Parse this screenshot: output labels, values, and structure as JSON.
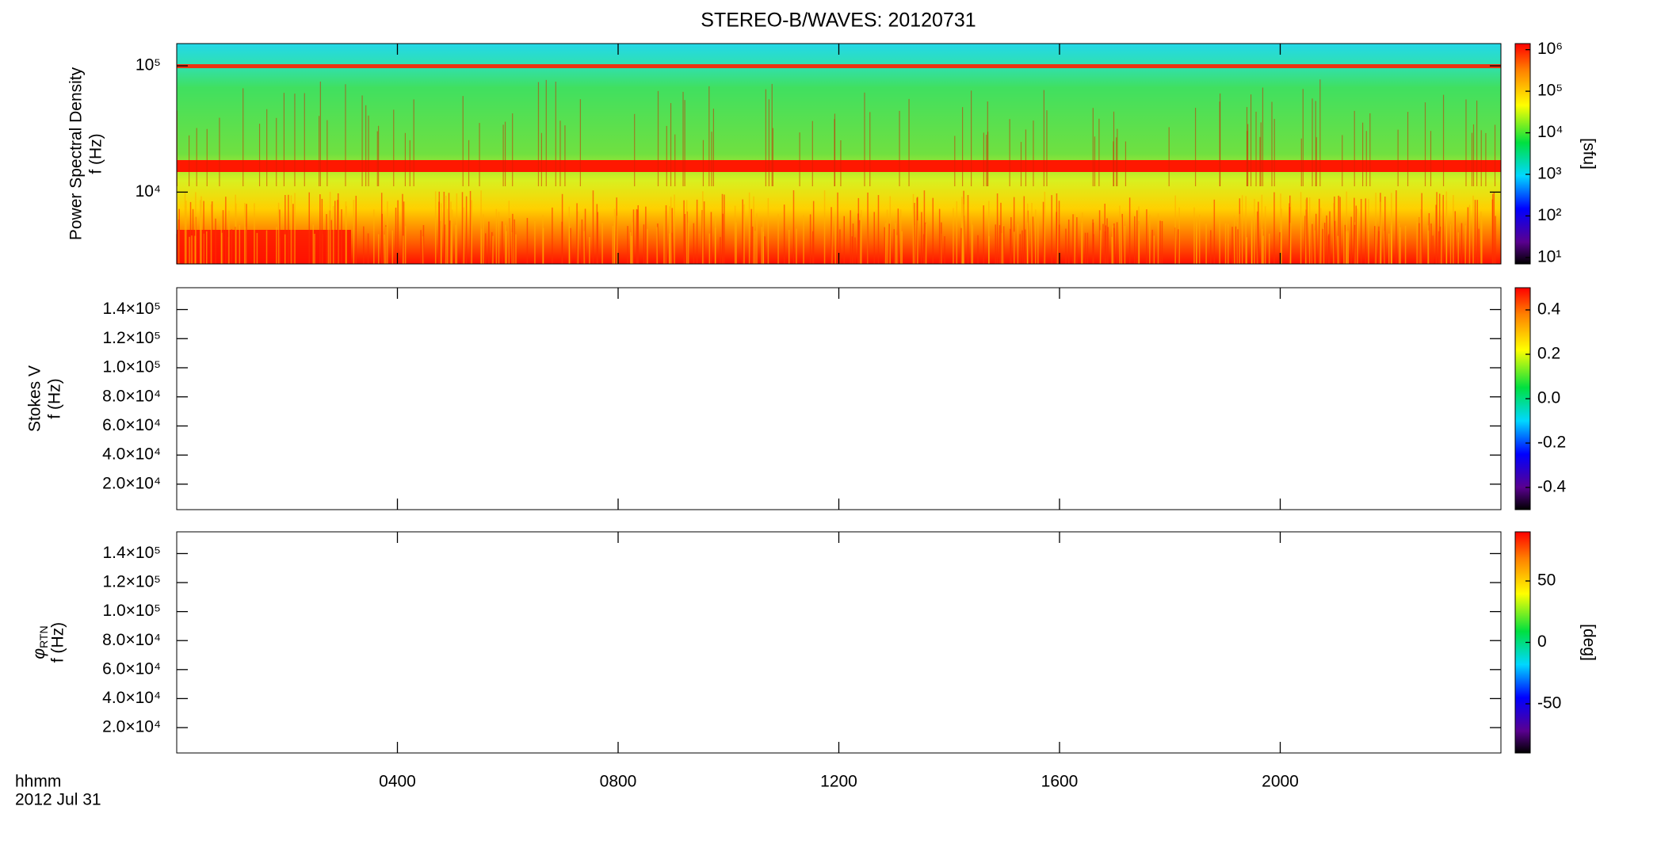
{
  "chart_data": [
    {
      "type": "heatmap",
      "title": "STEREO-B/WAVES: 20120731",
      "y_label": [
        "Power Spectral Density",
        "f (Hz)"
      ],
      "y_log": true,
      "ylim": [
        2700,
        150000
      ],
      "yticks": [
        {
          "value": 10000,
          "label": "10⁴"
        },
        {
          "value": 100000,
          "label": "10⁵"
        }
      ],
      "z_label": "[sfu]",
      "z_log": true,
      "zlim": [
        7,
        1400000
      ],
      "zticks": [
        {
          "value": 10,
          "label": "10¹"
        },
        {
          "value": 100,
          "label": "10²"
        },
        {
          "value": 1000,
          "label": "10³"
        },
        {
          "value": 10000,
          "label": "10⁴"
        },
        {
          "value": 100000,
          "label": "10⁵"
        },
        {
          "value": 1000000,
          "label": "10⁶"
        }
      ]
    },
    {
      "type": "heatmap",
      "y_label": [
        "Stokes V",
        "f (Hz)"
      ],
      "y_log": false,
      "ylim": [
        2500,
        155000
      ],
      "yticks": [
        {
          "value": 20000,
          "label": "2.0×10⁴"
        },
        {
          "value": 40000,
          "label": "4.0×10⁴"
        },
        {
          "value": 60000,
          "label": "6.0×10⁴"
        },
        {
          "value": 80000,
          "label": "8.0×10⁴"
        },
        {
          "value": 100000,
          "label": "1.0×10⁵"
        },
        {
          "value": 120000,
          "label": "1.2×10⁵"
        },
        {
          "value": 140000,
          "label": "1.4×10⁵"
        }
      ],
      "z_log": false,
      "zlim": [
        -0.5,
        0.5
      ],
      "zticks": [
        -0.4,
        -0.2,
        {
          "value": 0,
          "label": "0.0"
        },
        0.2,
        0.4
      ]
    },
    {
      "type": "heatmap",
      "y_label": [
        {
          "symbol": "φ",
          "subscript": "RTN"
        },
        "f (Hz)"
      ],
      "y_log": false,
      "ylim": [
        2500,
        155000
      ],
      "yticks": [
        {
          "value": 20000,
          "label": "2.0×10⁴"
        },
        {
          "value": 40000,
          "label": "4.0×10⁴"
        },
        {
          "value": 60000,
          "label": "6.0×10⁴"
        },
        {
          "value": 80000,
          "label": "8.0×10⁴"
        },
        {
          "value": 100000,
          "label": "1.0×10⁵"
        },
        {
          "value": 120000,
          "label": "1.2×10⁵"
        },
        {
          "value": 140000,
          "label": "1.4×10⁵"
        }
      ],
      "z_label": "[deg]",
      "z_log": false,
      "zlim": [
        -90,
        90
      ],
      "zticks": [
        -50,
        0,
        50
      ],
      "x_label": [
        "hhmm",
        "2012 Jul 31"
      ],
      "xlim": [
        0,
        24
      ],
      "xticks": [
        {
          "value": 4,
          "label": "0400"
        },
        {
          "value": 8,
          "label": "0800"
        },
        {
          "value": 12,
          "label": "1200"
        },
        {
          "value": 16,
          "label": "1600"
        },
        {
          "value": 20,
          "label": "2000"
        }
      ]
    }
  ]
}
